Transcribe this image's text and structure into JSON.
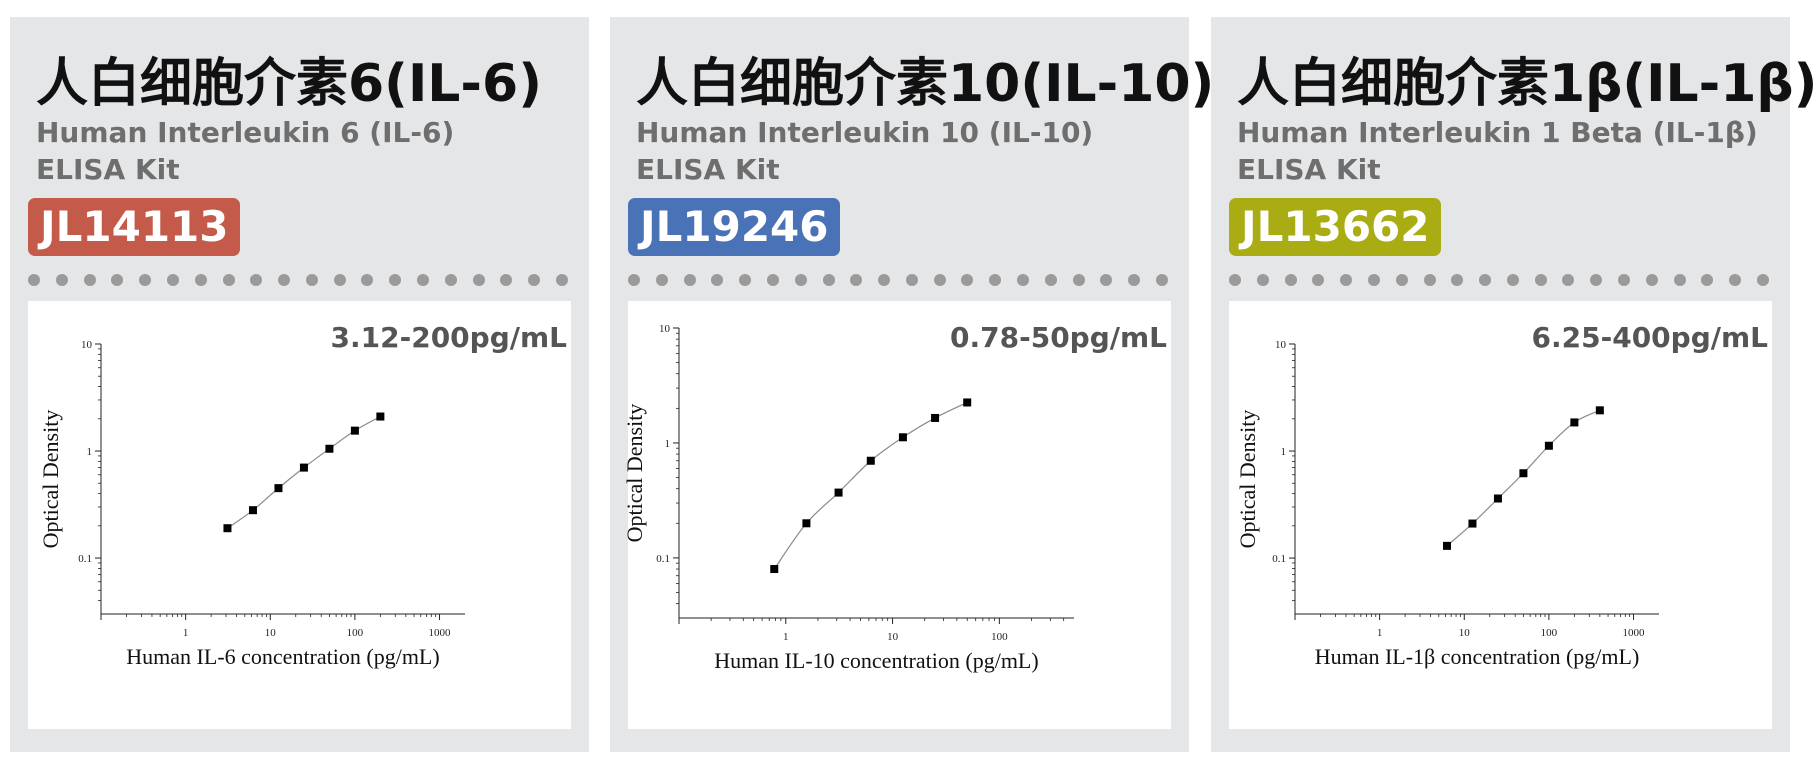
{
  "cards": [
    {
      "cn_title": "人白细胞介素6(IL-6)",
      "en_title_line1": "Human Interleukin 6 (IL-6)",
      "en_title_line2": "ELISA Kit",
      "catalog": "JL14113",
      "badge_color": "#c45a4a",
      "range": "3.12-200pg/mL"
    },
    {
      "cn_title": "人白细胞介素10(IL-10)",
      "en_title_line1": "Human Interleukin 10 (IL-10)",
      "en_title_line2": "ELISA Kit",
      "catalog": "JL19246",
      "badge_color": "#4a72b6",
      "range": "0.78-50pg/mL"
    },
    {
      "cn_title": "人白细胞介素1β(IL-1β)",
      "en_title_line1": "Human Interleukin 1 Beta (IL-1β)",
      "en_title_line2": "ELISA Kit",
      "catalog": "JL13662",
      "badge_color": "#a9ad13",
      "range": "6.25-400pg/mL"
    }
  ],
  "chart_data": [
    {
      "type": "scatter",
      "xlabel": "Human IL-6 concentration (pg/mL)",
      "ylabel": "Optical Density",
      "x_scale": "log",
      "y_scale": "log",
      "xlim": [
        0.1,
        2000
      ],
      "ylim": [
        0.03,
        10
      ],
      "x_ticks": [
        "1",
        "10",
        "100",
        "1000"
      ],
      "y_ticks": [
        "0.1",
        "1",
        "10"
      ],
      "grid": false,
      "series": [
        {
          "x": [
            3.12,
            6.25,
            12.5,
            25,
            50,
            100,
            200
          ],
          "y": [
            0.19,
            0.28,
            0.45,
            0.7,
            1.05,
            1.55,
            2.1
          ]
        }
      ]
    },
    {
      "type": "scatter",
      "xlabel": "Human IL-10 concentration (pg/mL)",
      "ylabel": "Optical Density",
      "x_scale": "log",
      "y_scale": "log",
      "xlim": [
        0.1,
        500
      ],
      "ylim": [
        0.03,
        10
      ],
      "x_ticks": [
        "1",
        "10",
        "100"
      ],
      "y_ticks": [
        "0.1",
        "1",
        "10"
      ],
      "grid": false,
      "series": [
        {
          "x": [
            0.78,
            1.56,
            3.12,
            6.25,
            12.5,
            25,
            50
          ],
          "y": [
            0.08,
            0.2,
            0.37,
            0.7,
            1.12,
            1.65,
            2.25
          ]
        }
      ]
    },
    {
      "type": "scatter",
      "xlabel": "Human IL-1β concentration (pg/mL)",
      "ylabel": "Optical Density",
      "x_scale": "log",
      "y_scale": "log",
      "xlim": [
        0.1,
        2000
      ],
      "ylim": [
        0.03,
        10
      ],
      "x_ticks": [
        "1",
        "10",
        "100",
        "1000"
      ],
      "y_ticks": [
        "0.1",
        "1",
        "10"
      ],
      "grid": false,
      "series": [
        {
          "x": [
            6.25,
            12.5,
            25,
            50,
            100,
            200,
            400
          ],
          "y": [
            0.13,
            0.21,
            0.36,
            0.62,
            1.12,
            1.85,
            2.4
          ]
        }
      ]
    }
  ]
}
